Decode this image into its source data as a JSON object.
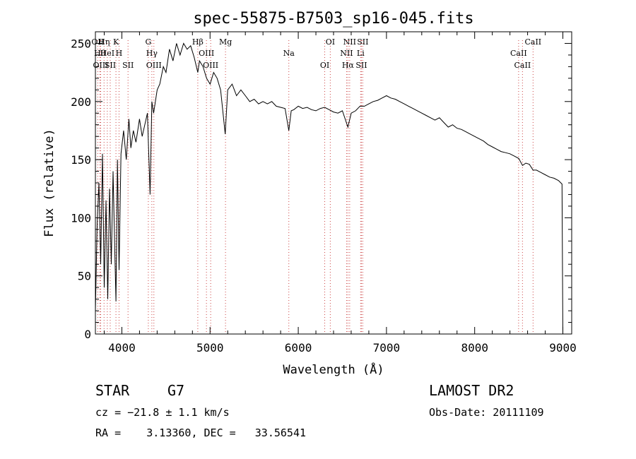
{
  "chart_data": {
    "type": "line",
    "title": "spec-55875-B7503_sp16-045.fits",
    "xlabel": "Wavelength (Å)",
    "ylabel": "Flux (relative)",
    "xlim": [
      3700,
      9100
    ],
    "ylim": [
      0,
      260
    ],
    "xticks": [
      4000,
      5000,
      6000,
      7000,
      8000,
      9000
    ],
    "yticks": [
      0,
      50,
      100,
      150,
      200,
      250
    ],
    "grid": false,
    "series": [
      {
        "x": [
          3700,
          3720,
          3740,
          3760,
          3780,
          3800,
          3820,
          3840,
          3860,
          3880,
          3900,
          3920,
          3933,
          3950,
          3968,
          3990,
          4020,
          4050,
          4080,
          4102,
          4130,
          4160,
          4200,
          4230,
          4260,
          4290,
          4320,
          4340,
          4360,
          4400,
          4430,
          4470,
          4500,
          4540,
          4580,
          4620,
          4660,
          4700,
          4740,
          4780,
          4820,
          4861,
          4880,
          4920,
          4960,
          5000,
          5040,
          5080,
          5120,
          5172,
          5200,
          5250,
          5300,
          5350,
          5400,
          5450,
          5500,
          5550,
          5600,
          5650,
          5700,
          5750,
          5800,
          5850,
          5893,
          5920,
          5950,
          6000,
          6050,
          6100,
          6150,
          6200,
          6250,
          6300,
          6350,
          6400,
          6450,
          6500,
          6563,
          6600,
          6650,
          6700,
          6750,
          6800,
          6850,
          6900,
          6950,
          7000,
          7050,
          7100,
          7150,
          7200,
          7250,
          7300,
          7350,
          7400,
          7450,
          7500,
          7550,
          7600,
          7650,
          7700,
          7750,
          7800,
          7850,
          7900,
          7950,
          8000,
          8050,
          8100,
          8150,
          8200,
          8250,
          8300,
          8350,
          8400,
          8450,
          8500,
          8542,
          8580,
          8620,
          8662,
          8700,
          8750,
          8800,
          8850,
          8900,
          8950,
          8990,
          9000
        ],
        "values": [
          20,
          95,
          130,
          60,
          155,
          40,
          115,
          30,
          125,
          60,
          140,
          70,
          28,
          150,
          55,
          155,
          175,
          150,
          185,
          160,
          175,
          165,
          185,
          170,
          180,
          190,
          120,
          200,
          190,
          210,
          215,
          230,
          225,
          245,
          235,
          250,
          240,
          250,
          245,
          248,
          238,
          225,
          235,
          230,
          220,
          215,
          225,
          220,
          210,
          172,
          210,
          215,
          205,
          210,
          205,
          200,
          202,
          198,
          200,
          198,
          200,
          196,
          195,
          194,
          175,
          192,
          193,
          196,
          194,
          195,
          193,
          192,
          194,
          195,
          193,
          191,
          190,
          192,
          178,
          190,
          192,
          196,
          196,
          198,
          200,
          201,
          203,
          205,
          203,
          202,
          200,
          198,
          196,
          194,
          192,
          190,
          188,
          186,
          184,
          186,
          182,
          178,
          180,
          177,
          176,
          174,
          172,
          170,
          168,
          166,
          163,
          161,
          159,
          157,
          156,
          155,
          153,
          151,
          145,
          147,
          146,
          141,
          141,
          139,
          137,
          135,
          134,
          132,
          129,
          0
        ]
      }
    ],
    "line_markers": [
      {
        "wl": 3726,
        "label": "OII"
      },
      {
        "wl": 3750,
        "label": "Hθ"
      },
      {
        "wl": 3760,
        "label": "OIII"
      },
      {
        "wl": 3798,
        "label": "Hη"
      },
      {
        "wl": 3835,
        "label": "HeI"
      },
      {
        "wl": 3868,
        "label": "SII"
      },
      {
        "wl": 3933,
        "label": "K"
      },
      {
        "wl": 3968,
        "label": "H"
      },
      {
        "wl": 4070,
        "label": "SII"
      },
      {
        "wl": 4300,
        "label": "G"
      },
      {
        "wl": 4340,
        "label": "Hγ"
      },
      {
        "wl": 4363,
        "label": "OIII"
      },
      {
        "wl": 4861,
        "label": "Hβ"
      },
      {
        "wl": 4959,
        "label": "OIII"
      },
      {
        "wl": 5007,
        "label": "OIII"
      },
      {
        "wl": 5175,
        "label": "Mg"
      },
      {
        "wl": 5893,
        "label": "Na"
      },
      {
        "wl": 6300,
        "label": "OI"
      },
      {
        "wl": 6363,
        "label": "OI"
      },
      {
        "wl": 6548,
        "label": "NII"
      },
      {
        "wl": 6563,
        "label": "Hα"
      },
      {
        "wl": 6583,
        "label": "NII"
      },
      {
        "wl": 6707,
        "label": "Li"
      },
      {
        "wl": 6716,
        "label": "SII"
      },
      {
        "wl": 6731,
        "label": "SII"
      },
      {
        "wl": 8498,
        "label": "CaII"
      },
      {
        "wl": 8542,
        "label": "CaII"
      },
      {
        "wl": 8662,
        "label": "CaII"
      }
    ]
  },
  "info": {
    "class_label": "STAR",
    "subclass": "G7",
    "cz": "cz = −21.8 ± 1.1 km/s",
    "coords": "RA =    3.13360, DEC =   33.56541",
    "survey": "LAMOST DR2",
    "obs_date": "Obs-Date: 20111109"
  }
}
